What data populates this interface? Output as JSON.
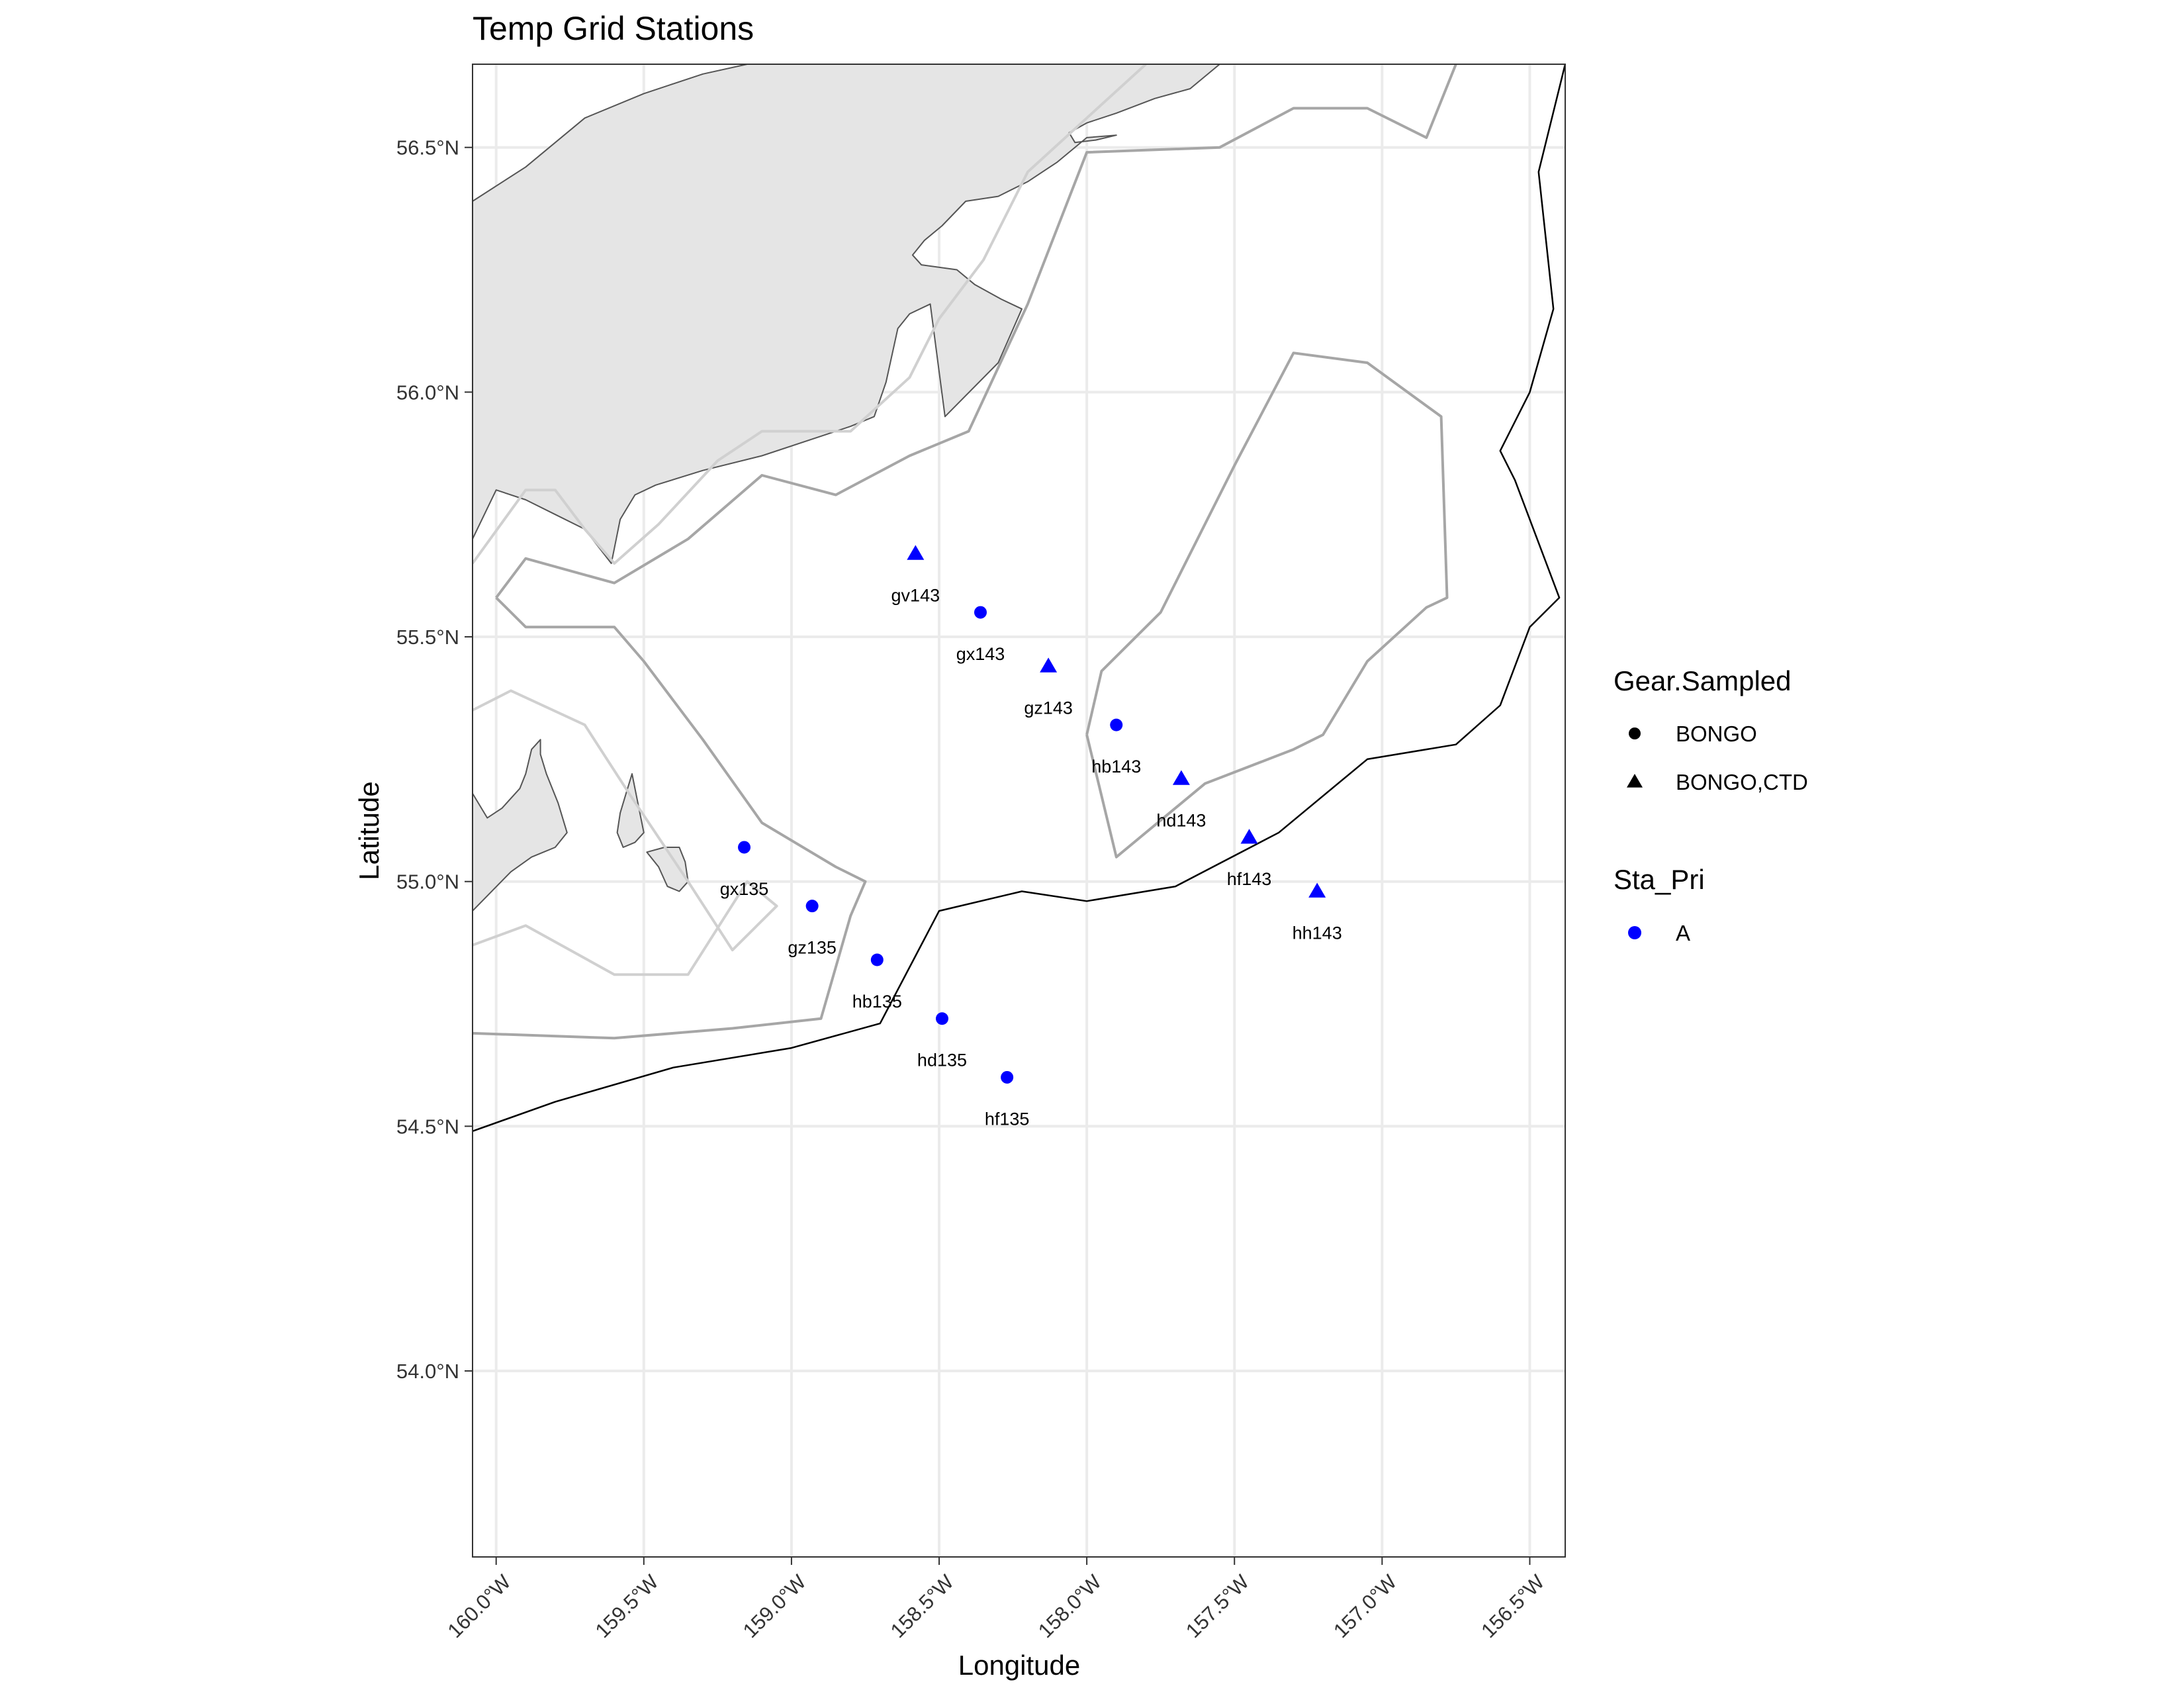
{
  "title": "Temp Grid Stations",
  "x_axis_title": "Longitude",
  "y_axis_title": "Latitude",
  "colors": {
    "station": "#0000FF",
    "land_fill": "#E5E5E5",
    "land_outline": "#555555",
    "contour_light": "#D0D0D0",
    "contour_mid": "#A6A6A6",
    "contour_dark": "#000000",
    "grid": "#EBEBEB",
    "panel_border": "#333333"
  },
  "chart_data": {
    "type": "scatter",
    "xlim": [
      -160.08,
      -156.38
    ],
    "ylim": [
      53.62,
      56.67
    ],
    "x_ticks": [
      -160.0,
      -159.5,
      -159.0,
      -158.5,
      -158.0,
      -157.5,
      -157.0,
      -156.5
    ],
    "x_tick_labels": [
      "160.0°W",
      "159.5°W",
      "159.0°W",
      "158.5°W",
      "158.0°W",
      "157.5°W",
      "157.0°W",
      "156.5°W"
    ],
    "y_ticks": [
      54.0,
      54.5,
      55.0,
      55.5,
      56.0,
      56.5
    ],
    "y_tick_labels": [
      "54.0°N",
      "54.5°N",
      "55.0°N",
      "55.5°N",
      "56.0°N",
      "56.5°N"
    ],
    "grid": true,
    "stations": [
      {
        "label": "gv143",
        "lon": -158.58,
        "lat": 55.67,
        "gear": "BONGO,CTD",
        "pri": "A"
      },
      {
        "label": "gx143",
        "lon": -158.36,
        "lat": 55.55,
        "gear": "BONGO",
        "pri": "A"
      },
      {
        "label": "gz143",
        "lon": -158.13,
        "lat": 55.44,
        "gear": "BONGO,CTD",
        "pri": "A"
      },
      {
        "label": "hb143",
        "lon": -157.9,
        "lat": 55.32,
        "gear": "BONGO",
        "pri": "A"
      },
      {
        "label": "hd143",
        "lon": -157.68,
        "lat": 55.21,
        "gear": "BONGO,CTD",
        "pri": "A"
      },
      {
        "label": "hf143",
        "lon": -157.45,
        "lat": 55.09,
        "gear": "BONGO,CTD",
        "pri": "A"
      },
      {
        "label": "hh143",
        "lon": -157.22,
        "lat": 54.98,
        "gear": "BONGO,CTD",
        "pri": "A"
      },
      {
        "label": "gx135",
        "lon": -159.16,
        "lat": 55.07,
        "gear": "BONGO",
        "pri": "A"
      },
      {
        "label": "gz135",
        "lon": -158.93,
        "lat": 54.95,
        "gear": "BONGO",
        "pri": "A"
      },
      {
        "label": "hb135",
        "lon": -158.71,
        "lat": 54.84,
        "gear": "BONGO",
        "pri": "A"
      },
      {
        "label": "hd135",
        "lon": -158.49,
        "lat": 54.72,
        "gear": "BONGO",
        "pri": "A"
      },
      {
        "label": "hf135",
        "lon": -158.27,
        "lat": 54.6,
        "gear": "BONGO",
        "pri": "A"
      }
    ],
    "land": [
      [
        [
          -160.08,
          56.39
        ],
        [
          -159.9,
          56.46
        ],
        [
          -159.7,
          56.56
        ],
        [
          -159.5,
          56.61
        ],
        [
          -159.3,
          56.65
        ],
        [
          -159.15,
          56.67
        ],
        [
          -157.55,
          56.67
        ],
        [
          -157.65,
          56.62
        ],
        [
          -157.77,
          56.6
        ],
        [
          -157.9,
          56.57
        ],
        [
          -158.0,
          56.55
        ],
        [
          -158.06,
          56.53
        ],
        [
          -158.04,
          56.51
        ],
        [
          -157.97,
          56.515
        ],
        [
          -157.9,
          56.525
        ],
        [
          -158.0,
          56.52
        ],
        [
          -158.1,
          56.47
        ],
        [
          -158.2,
          56.43
        ],
        [
          -158.3,
          56.4
        ],
        [
          -158.41,
          56.39
        ],
        [
          -158.49,
          56.34
        ],
        [
          -158.55,
          56.31
        ],
        [
          -158.59,
          56.28
        ],
        [
          -158.56,
          56.26
        ],
        [
          -158.44,
          56.25
        ],
        [
          -158.38,
          56.22
        ],
        [
          -158.29,
          56.19
        ],
        [
          -158.22,
          56.17
        ],
        [
          -158.3,
          56.06
        ],
        [
          -158.48,
          55.95
        ],
        [
          -158.53,
          56.18
        ],
        [
          -158.6,
          56.16
        ],
        [
          -158.64,
          56.13
        ],
        [
          -158.68,
          56.02
        ],
        [
          -158.72,
          55.95
        ],
        [
          -158.8,
          55.93
        ],
        [
          -158.9,
          55.91
        ],
        [
          -159.1,
          55.87
        ],
        [
          -159.3,
          55.84
        ],
        [
          -159.46,
          55.81
        ],
        [
          -159.53,
          55.79
        ],
        [
          -159.58,
          55.74
        ],
        [
          -159.61,
          55.65
        ],
        [
          -159.7,
          55.72
        ],
        [
          -159.8,
          55.75
        ],
        [
          -159.9,
          55.78
        ],
        [
          -160.0,
          55.8
        ],
        [
          -160.08,
          55.7
        ]
      ],
      [
        [
          -160.08,
          55.18
        ],
        [
          -160.03,
          55.13
        ],
        [
          -159.98,
          55.15
        ],
        [
          -159.92,
          55.19
        ],
        [
          -159.9,
          55.22
        ],
        [
          -159.88,
          55.27
        ],
        [
          -159.85,
          55.29
        ],
        [
          -159.85,
          55.26
        ],
        [
          -159.83,
          55.22
        ],
        [
          -159.79,
          55.16
        ],
        [
          -159.76,
          55.1
        ],
        [
          -159.8,
          55.07
        ],
        [
          -159.84,
          55.06
        ],
        [
          -159.88,
          55.05
        ],
        [
          -159.95,
          55.02
        ],
        [
          -160.08,
          54.94
        ]
      ],
      [
        [
          -159.54,
          55.22
        ],
        [
          -159.52,
          55.16
        ],
        [
          -159.5,
          55.1
        ],
        [
          -159.53,
          55.08
        ],
        [
          -159.57,
          55.07
        ],
        [
          -159.59,
          55.1
        ],
        [
          -159.58,
          55.14
        ],
        [
          -159.56,
          55.18
        ]
      ],
      [
        [
          -159.49,
          55.06
        ],
        [
          -159.45,
          55.03
        ],
        [
          -159.42,
          54.99
        ],
        [
          -159.38,
          54.98
        ],
        [
          -159.35,
          55.0
        ],
        [
          -159.36,
          55.04
        ],
        [
          -159.38,
          55.07
        ],
        [
          -159.43,
          55.07
        ]
      ]
    ],
    "contours": [
      {
        "tone": "contour_light",
        "points": [
          [
            -160.08,
            55.65
          ],
          [
            -159.9,
            55.8
          ],
          [
            -159.8,
            55.8
          ],
          [
            -159.7,
            55.72
          ],
          [
            -159.6,
            55.65
          ],
          [
            -159.45,
            55.73
          ],
          [
            -159.25,
            55.86
          ],
          [
            -159.1,
            55.92
          ],
          [
            -158.8,
            55.92
          ],
          [
            -158.6,
            56.03
          ],
          [
            -158.5,
            56.15
          ],
          [
            -158.35,
            56.27
          ],
          [
            -158.2,
            56.45
          ],
          [
            -158.0,
            56.56
          ],
          [
            -157.8,
            56.67
          ]
        ]
      },
      {
        "tone": "contour_light",
        "points": [
          [
            -160.08,
            55.35
          ],
          [
            -159.95,
            55.39
          ],
          [
            -159.7,
            55.32
          ],
          [
            -159.55,
            55.18
          ],
          [
            -159.35,
            55.0
          ],
          [
            -159.2,
            54.86
          ],
          [
            -159.05,
            54.95
          ],
          [
            -159.15,
            55.0
          ],
          [
            -159.35,
            54.81
          ],
          [
            -159.6,
            54.81
          ],
          [
            -159.9,
            54.91
          ],
          [
            -160.08,
            54.87
          ]
        ]
      },
      {
        "tone": "contour_mid",
        "points": [
          [
            -160.0,
            55.58
          ],
          [
            -159.9,
            55.66
          ],
          [
            -159.6,
            55.61
          ],
          [
            -159.35,
            55.7
          ],
          [
            -159.1,
            55.83
          ],
          [
            -158.85,
            55.79
          ],
          [
            -158.6,
            55.87
          ],
          [
            -158.4,
            55.92
          ],
          [
            -158.2,
            56.18
          ],
          [
            -158.0,
            56.49
          ],
          [
            -157.55,
            56.5
          ],
          [
            -157.3,
            56.58
          ],
          [
            -157.05,
            56.58
          ],
          [
            -156.85,
            56.52
          ],
          [
            -156.75,
            56.67
          ]
        ]
      },
      {
        "tone": "contour_mid",
        "points": [
          [
            -160.0,
            55.58
          ],
          [
            -159.9,
            55.52
          ],
          [
            -159.6,
            55.52
          ],
          [
            -159.5,
            55.45
          ],
          [
            -159.3,
            55.29
          ],
          [
            -159.1,
            55.12
          ],
          [
            -158.85,
            55.03
          ],
          [
            -158.75,
            55.0
          ],
          [
            -158.8,
            54.93
          ],
          [
            -158.9,
            54.72
          ],
          [
            -159.2,
            54.7
          ],
          [
            -159.6,
            54.68
          ],
          [
            -160.08,
            54.69
          ]
        ]
      },
      {
        "tone": "contour_mid",
        "points": [
          [
            -158.0,
            55.3
          ],
          [
            -157.95,
            55.43
          ],
          [
            -157.75,
            55.55
          ],
          [
            -157.5,
            55.85
          ],
          [
            -157.3,
            56.08
          ],
          [
            -157.05,
            56.06
          ],
          [
            -156.8,
            55.95
          ],
          [
            -156.78,
            55.58
          ],
          [
            -156.85,
            55.56
          ],
          [
            -157.05,
            55.45
          ],
          [
            -157.2,
            55.3
          ],
          [
            -157.3,
            55.27
          ],
          [
            -157.6,
            55.2
          ],
          [
            -157.9,
            55.05
          ],
          [
            -158.0,
            55.3
          ]
        ]
      },
      {
        "tone": "contour_dark",
        "points": [
          [
            -160.08,
            54.49
          ],
          [
            -159.8,
            54.55
          ],
          [
            -159.4,
            54.62
          ],
          [
            -159.0,
            54.66
          ],
          [
            -158.7,
            54.71
          ],
          [
            -158.5,
            54.94
          ],
          [
            -158.22,
            54.98
          ],
          [
            -158.0,
            54.96
          ],
          [
            -157.7,
            54.99
          ],
          [
            -157.35,
            55.1
          ],
          [
            -157.05,
            55.25
          ],
          [
            -156.75,
            55.28
          ],
          [
            -156.6,
            55.36
          ],
          [
            -156.5,
            55.52
          ],
          [
            -156.4,
            55.58
          ],
          [
            -156.55,
            55.82
          ],
          [
            -156.6,
            55.88
          ],
          [
            -156.5,
            56.0
          ],
          [
            -156.42,
            56.17
          ],
          [
            -156.47,
            56.45
          ],
          [
            -156.38,
            56.67
          ]
        ]
      }
    ]
  },
  "legend": {
    "gear_title": "Gear.Sampled",
    "gear_items": [
      {
        "label": "BONGO",
        "shape": "circle"
      },
      {
        "label": "BONGO,CTD",
        "shape": "triangle"
      }
    ],
    "pri_title": "Sta_Pri",
    "pri_items": [
      {
        "label": "A",
        "shape": "circle"
      }
    ]
  }
}
